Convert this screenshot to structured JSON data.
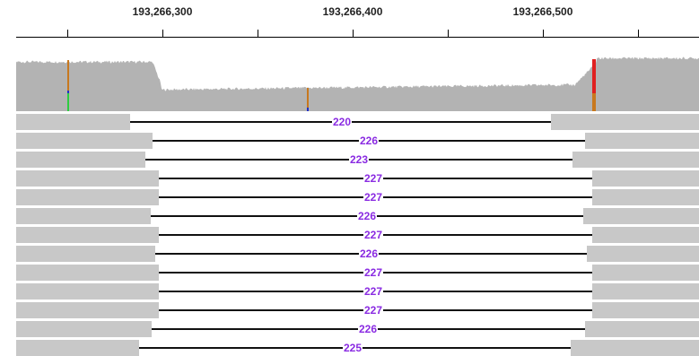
{
  "ruler": {
    "labels": [
      "193,266,300",
      "193,266,400",
      "193,266,500"
    ]
  },
  "coverage": {
    "color": "#b3b3b3",
    "mismatch_colors": {
      "orange": "#c8781e",
      "red": "#e02020",
      "green": "#2ecc40",
      "blue": "#2030c8"
    }
  },
  "reads": {
    "block_color": "#c8c8c8",
    "junction_color": "#111111",
    "label_color": "#8a2be2",
    "rows": [
      {
        "label": "220"
      },
      {
        "label": "226"
      },
      {
        "label": "223"
      },
      {
        "label": "227"
      },
      {
        "label": "227"
      },
      {
        "label": "226"
      },
      {
        "label": "227"
      },
      {
        "label": "226"
      },
      {
        "label": "227"
      },
      {
        "label": "227"
      },
      {
        "label": "227"
      },
      {
        "label": "226"
      },
      {
        "label": "225"
      }
    ]
  }
}
